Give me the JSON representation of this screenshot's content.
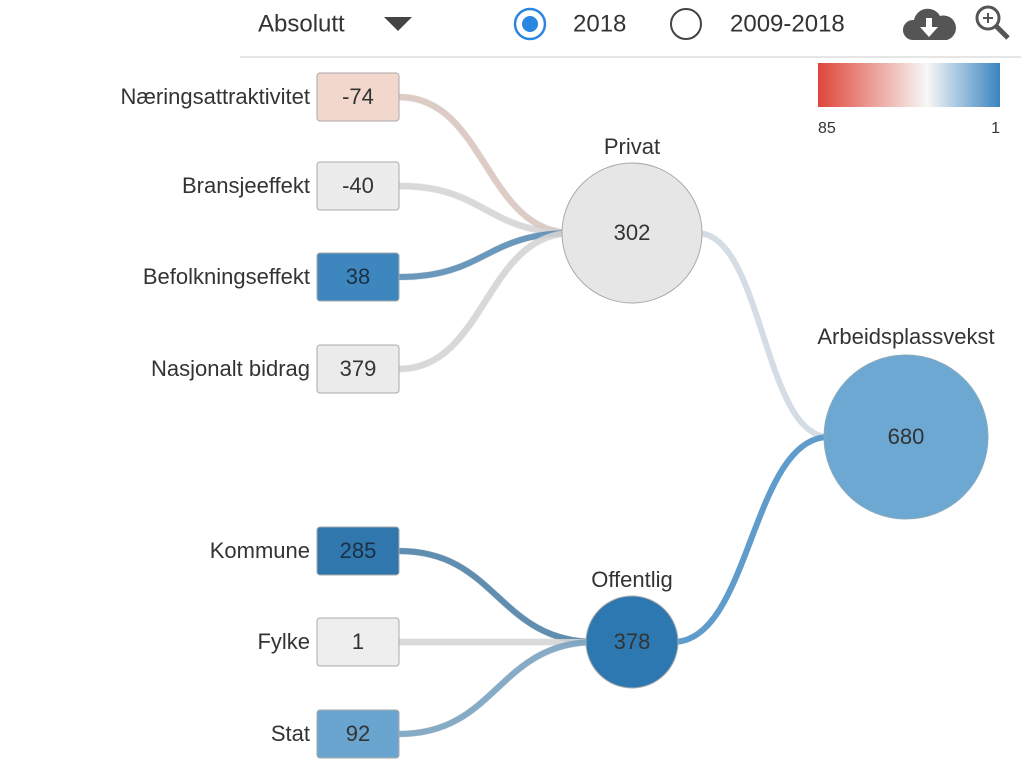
{
  "toolbar": {
    "dropdown": "Absolutt",
    "options": [
      {
        "label": "2018",
        "selected": true
      },
      {
        "label": "2009-2018",
        "selected": false
      }
    ]
  },
  "legend": {
    "min_label": "85",
    "max_label": "1",
    "colors": [
      "#e0463a",
      "#f7f7f7",
      "#3a84bf"
    ]
  },
  "sources": [
    {
      "label": "Næringsattraktivitet",
      "value": "-74",
      "color": "#f2d8cc",
      "target": 0
    },
    {
      "label": "Bransjeeffekt",
      "value": "-40",
      "color": "#ececec",
      "target": 0
    },
    {
      "label": "Befolkningseffekt",
      "value": "38",
      "color": "#3d87be",
      "target": 0
    },
    {
      "label": "Nasjonalt bidrag",
      "value": "379",
      "color": "#ebebeb",
      "target": 0
    },
    {
      "label": "Kommune",
      "value": "285",
      "color": "#2f77ad",
      "target": 1
    },
    {
      "label": "Fylke",
      "value": "1",
      "color": "#eeeeee",
      "target": 1
    },
    {
      "label": "Stat",
      "value": "92",
      "color": "#6aa5cf",
      "target": 1
    }
  ],
  "groups": [
    {
      "label": "Privat",
      "value": "302",
      "color": "#e6e6e6"
    },
    {
      "label": "Offentlig",
      "value": "378",
      "color": "#2e78b2"
    }
  ],
  "total": {
    "label": "Arbeidsplassvekst",
    "value": "680",
    "color": "#6ca8d2"
  }
}
